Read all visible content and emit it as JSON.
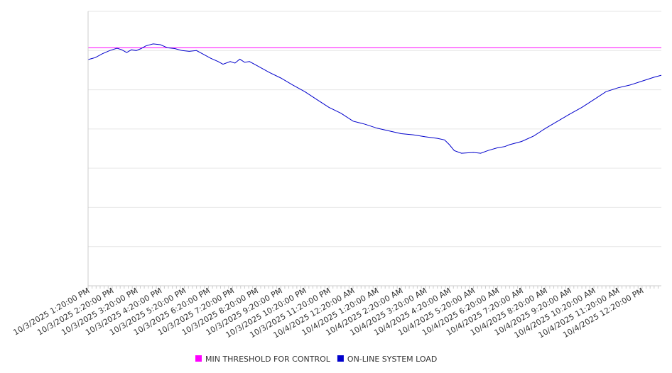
{
  "chart_data": {
    "type": "line",
    "title": "",
    "xlabel": "",
    "ylabel": "",
    "grid": true,
    "legend_placement": "bottom-center",
    "x_tick_labels": [
      "10/3/2025 1:20:00 PM",
      "10/3/2025 2:20:00 PM",
      "10/3/2025 3:20:00 PM",
      "10/3/2025 4:20:00 PM",
      "10/3/2025 5:20:00 PM",
      "10/3/2025 6:20:00 PM",
      "10/3/2025 7:20:00 PM",
      "10/3/2025 8:20:00 PM",
      "10/3/2025 9:20:00 PM",
      "10/3/2025 10:20:00 PM",
      "10/3/2025 11:20:00 PM",
      "10/4/2025 12:20:00 AM",
      "10/4/2025 1:20:00 AM",
      "10/4/2025 2:20:00 AM",
      "10/4/2025 3:20:00 AM",
      "10/4/2025 4:20:00 AM",
      "10/4/2025 5:20:00 AM",
      "10/4/2025 6:20:00 AM",
      "10/4/2025 7:20:00 AM",
      "10/4/2025 8:20:00 AM",
      "10/4/2025 9:20:00 AM",
      "10/4/2025 10:20:00 AM",
      "10/4/2025 11:20:00 AM",
      "10/4/2025 12:20:00 PM"
    ],
    "x_range_hours": [
      0,
      23.8
    ],
    "ylim": [
      0,
      7
    ],
    "y_gridlines": [
      1,
      2,
      3,
      4,
      5,
      6,
      7
    ],
    "series": [
      {
        "name": "MIN THRESHOLD FOR CONTROL",
        "color": "#ff00ff",
        "values": [
          [
            0,
            6.07
          ],
          [
            23.8,
            6.07
          ]
        ]
      },
      {
        "name": "ON-LINE SYSTEM LOAD",
        "color": "#0000cc",
        "values": [
          [
            0,
            5.77
          ],
          [
            0.3,
            5.82
          ],
          [
            0.6,
            5.92
          ],
          [
            0.9,
            6.0
          ],
          [
            1.2,
            6.06
          ],
          [
            1.4,
            6.02
          ],
          [
            1.6,
            5.95
          ],
          [
            1.8,
            6.02
          ],
          [
            2.0,
            6.0
          ],
          [
            2.2,
            6.05
          ],
          [
            2.4,
            6.12
          ],
          [
            2.7,
            6.17
          ],
          [
            3.0,
            6.15
          ],
          [
            3.3,
            6.07
          ],
          [
            3.6,
            6.05
          ],
          [
            3.9,
            6.0
          ],
          [
            4.2,
            5.98
          ],
          [
            4.5,
            6.0
          ],
          [
            4.8,
            5.9
          ],
          [
            5.1,
            5.8
          ],
          [
            5.4,
            5.72
          ],
          [
            5.6,
            5.65
          ],
          [
            5.9,
            5.72
          ],
          [
            6.1,
            5.68
          ],
          [
            6.3,
            5.78
          ],
          [
            6.5,
            5.7
          ],
          [
            6.7,
            5.72
          ],
          [
            7.0,
            5.62
          ],
          [
            7.5,
            5.45
          ],
          [
            8.0,
            5.3
          ],
          [
            8.5,
            5.12
          ],
          [
            9.0,
            4.95
          ],
          [
            9.5,
            4.75
          ],
          [
            10.0,
            4.55
          ],
          [
            10.5,
            4.4
          ],
          [
            11.0,
            4.2
          ],
          [
            11.5,
            4.12
          ],
          [
            12.0,
            4.02
          ],
          [
            12.5,
            3.95
          ],
          [
            13.0,
            3.88
          ],
          [
            13.5,
            3.85
          ],
          [
            14.0,
            3.8
          ],
          [
            14.5,
            3.76
          ],
          [
            14.8,
            3.72
          ],
          [
            15.0,
            3.6
          ],
          [
            15.2,
            3.45
          ],
          [
            15.5,
            3.38
          ],
          [
            16.0,
            3.4
          ],
          [
            16.3,
            3.38
          ],
          [
            16.6,
            3.45
          ],
          [
            17.0,
            3.52
          ],
          [
            17.3,
            3.55
          ],
          [
            17.5,
            3.6
          ],
          [
            18.0,
            3.68
          ],
          [
            18.5,
            3.82
          ],
          [
            19.0,
            4.02
          ],
          [
            19.5,
            4.2
          ],
          [
            20.0,
            4.38
          ],
          [
            20.5,
            4.55
          ],
          [
            21.0,
            4.75
          ],
          [
            21.5,
            4.95
          ],
          [
            22.0,
            5.05
          ],
          [
            22.5,
            5.12
          ],
          [
            23.0,
            5.22
          ],
          [
            23.5,
            5.32
          ],
          [
            23.8,
            5.37
          ]
        ]
      }
    ]
  }
}
